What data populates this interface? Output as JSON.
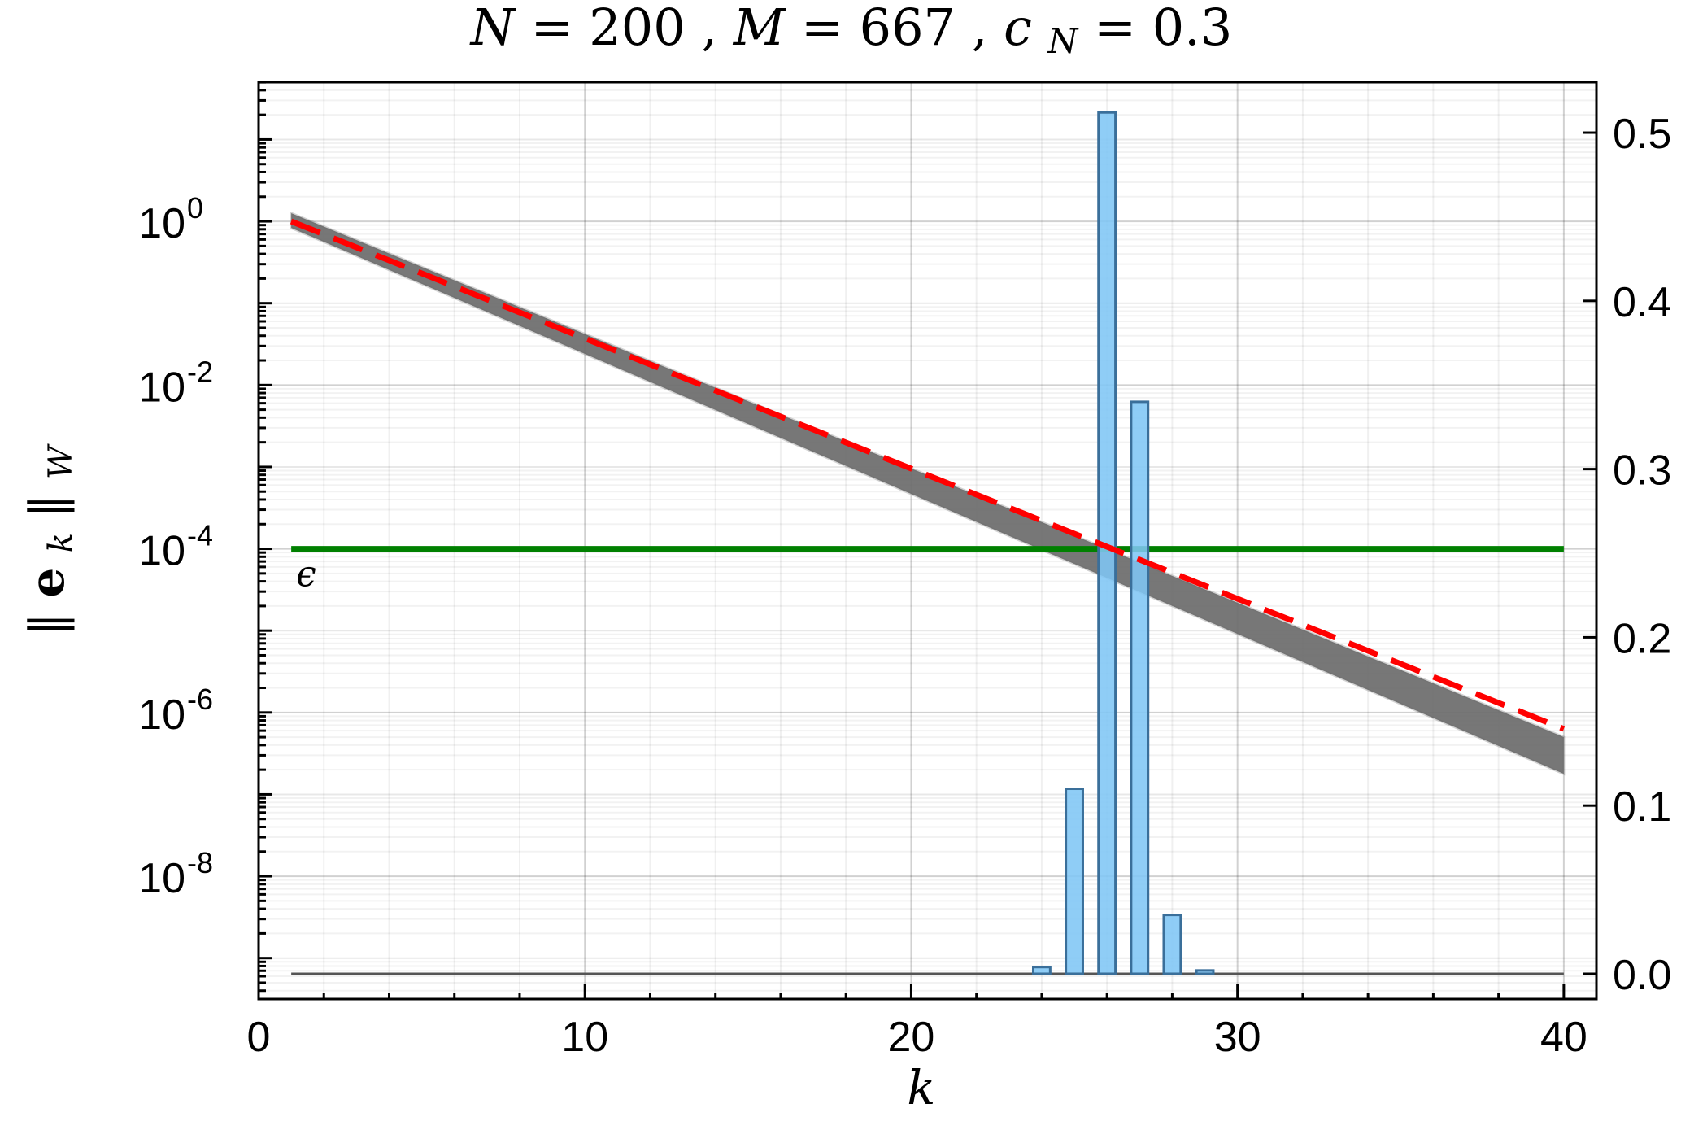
{
  "chart_data": {
    "type": "line+bar",
    "title": "N = 200, M = 667, c_N = 0.3",
    "title_parts": {
      "n_label": "N",
      "n_value": "200",
      "m_label": "M",
      "m_value": "667",
      "c_base": "c",
      "c_sub": "N",
      "c_value": "0.3"
    },
    "xlabel": "k",
    "ylabel": "||e_k||_W",
    "ylabel_parts": {
      "bars": "‖",
      "vec": "e",
      "sub": "k",
      "norm_sub": "W"
    },
    "x_range": [
      0,
      41
    ],
    "x_ticks": [
      0,
      10,
      20,
      30,
      40
    ],
    "x_tick_labels": [
      "0",
      "10",
      "20",
      "30",
      "40"
    ],
    "y_left": {
      "scale": "log10",
      "range_exp": [
        -9.5,
        1.7
      ],
      "ticks_exp": [
        0,
        -2,
        -4,
        -6,
        -8
      ],
      "tick_labels": [
        {
          "base": "10",
          "exp": "0"
        },
        {
          "base": "10",
          "exp": "-2"
        },
        {
          "base": "10",
          "exp": "-4"
        },
        {
          "base": "10",
          "exp": "-6"
        },
        {
          "base": "10",
          "exp": "-8"
        }
      ]
    },
    "y_right": {
      "scale": "linear",
      "range": [
        -0.015,
        0.53
      ],
      "ticks": [
        0.0,
        0.1,
        0.2,
        0.3,
        0.4,
        0.5
      ],
      "tick_labels": [
        "0.0",
        "0.1",
        "0.2",
        "0.3",
        "0.4",
        "0.5"
      ]
    },
    "grid": true,
    "series": [
      {
        "kind": "band",
        "axis": "left",
        "color": "#6b6b6b",
        "k": [
          1,
          40
        ],
        "upper_log10": [
          0.1,
          -6.3
        ],
        "lower_log10": [
          -0.08,
          -6.75
        ]
      },
      {
        "kind": "dashed-line",
        "axis": "left",
        "color": "#ff0000",
        "k": [
          1,
          40
        ],
        "log10": [
          0.0,
          -6.2
        ]
      },
      {
        "kind": "hline",
        "axis": "left",
        "color": "#008000",
        "k": [
          1,
          40
        ],
        "log10": -4,
        "label": "ϵ"
      },
      {
        "kind": "bars",
        "axis": "right",
        "color": "#7fc6f5",
        "edge": "#3a6f9a",
        "k": [
          24,
          25,
          26,
          27,
          28,
          29
        ],
        "values": [
          0.004,
          0.11,
          0.512,
          0.34,
          0.035,
          0.002
        ]
      },
      {
        "kind": "baseline",
        "axis": "right",
        "color": "#555555",
        "k": [
          1,
          40
        ],
        "value": 0.0
      }
    ]
  }
}
